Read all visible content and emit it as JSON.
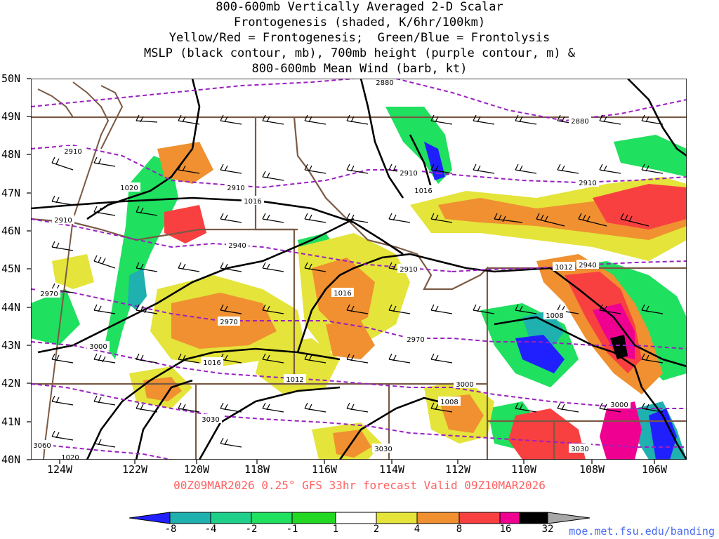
{
  "title_lines": [
    "800-600mb Vertically Averaged 2-D Scalar",
    "Frontogenesis (shaded, K/6hr/100km)",
    "Yellow/Red = Frontogenesis;  Green/Blue = Frontolysis",
    "MSLP (black contour, mb), 700mb height (purple contour, m) &",
    "800-600mb Mean Wind (barb, kt)"
  ],
  "lat_labels": [
    "50N",
    "49N",
    "48N",
    "47N",
    "46N",
    "45N",
    "44N",
    "43N",
    "42N",
    "41N",
    "40N"
  ],
  "lon_labels": [
    "124W",
    "122W",
    "120W",
    "118W",
    "116W",
    "114W",
    "112W",
    "110W",
    "108W",
    "106W"
  ],
  "valid_text": "00Z09MAR2026 0.25° GFS 33hr forecast Valid 09Z10MAR2026",
  "colorbar": {
    "labels": [
      "-8",
      "-4",
      "-2",
      "-1",
      "1",
      "2",
      "4",
      "8",
      "16",
      "32"
    ],
    "colors": [
      "#2020ff",
      "#1fb0b0",
      "#1fd08a",
      "#1fe05f",
      "#22d822",
      "#ffffff",
      "#e4e43a",
      "#f09030",
      "#f84040",
      "#f00090",
      "#000000",
      "#a8a8a8"
    ]
  },
  "mslp_labels": [
    "1020",
    "1016",
    "1016",
    "1016",
    "1012",
    "1012",
    "1008",
    "1008",
    "1016",
    "1020"
  ],
  "height_labels": [
    "2880",
    "2880",
    "2910",
    "2910",
    "2910",
    "2910",
    "2910",
    "2940",
    "2940",
    "2970",
    "2970",
    "2970",
    "3000",
    "3000",
    "3000",
    "3030",
    "3030",
    "3030",
    "3060",
    "2910"
  ],
  "credit": "moe.met.fsu.edu/banding"
}
